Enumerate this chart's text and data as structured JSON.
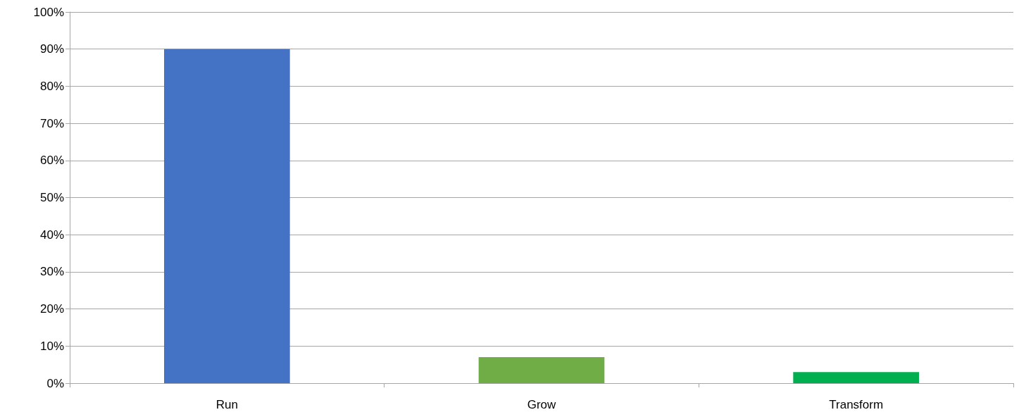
{
  "chart_data": {
    "type": "bar",
    "categories": [
      "Run",
      "Grow",
      "Transform"
    ],
    "values": [
      90,
      7,
      3
    ],
    "colors": [
      "#4472c4",
      "#70ad47",
      "#00b050"
    ],
    "ylim": [
      0,
      100
    ],
    "yticks": [
      {
        "value": 0,
        "label": "0%"
      },
      {
        "value": 10,
        "label": "10%"
      },
      {
        "value": 20,
        "label": "20%"
      },
      {
        "value": 30,
        "label": "30%"
      },
      {
        "value": 40,
        "label": "40%"
      },
      {
        "value": 50,
        "label": "50%"
      },
      {
        "value": 60,
        "label": "60%"
      },
      {
        "value": 70,
        "label": "70%"
      },
      {
        "value": 80,
        "label": "80%"
      },
      {
        "value": 90,
        "label": "90%"
      },
      {
        "value": 100,
        "label": "100%"
      }
    ],
    "grid": "y"
  }
}
